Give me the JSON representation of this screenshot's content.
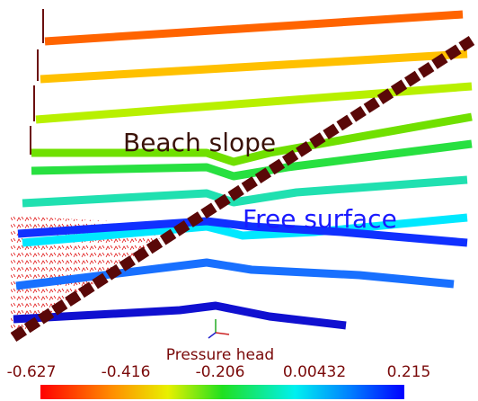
{
  "annotations": {
    "beach_slope": "Beach slope",
    "free_surface": "Free surface"
  },
  "colorbar": {
    "title": "Pressure head",
    "ticks": [
      -0.627,
      -0.416,
      -0.206,
      0.00432,
      0.215
    ]
  }
}
